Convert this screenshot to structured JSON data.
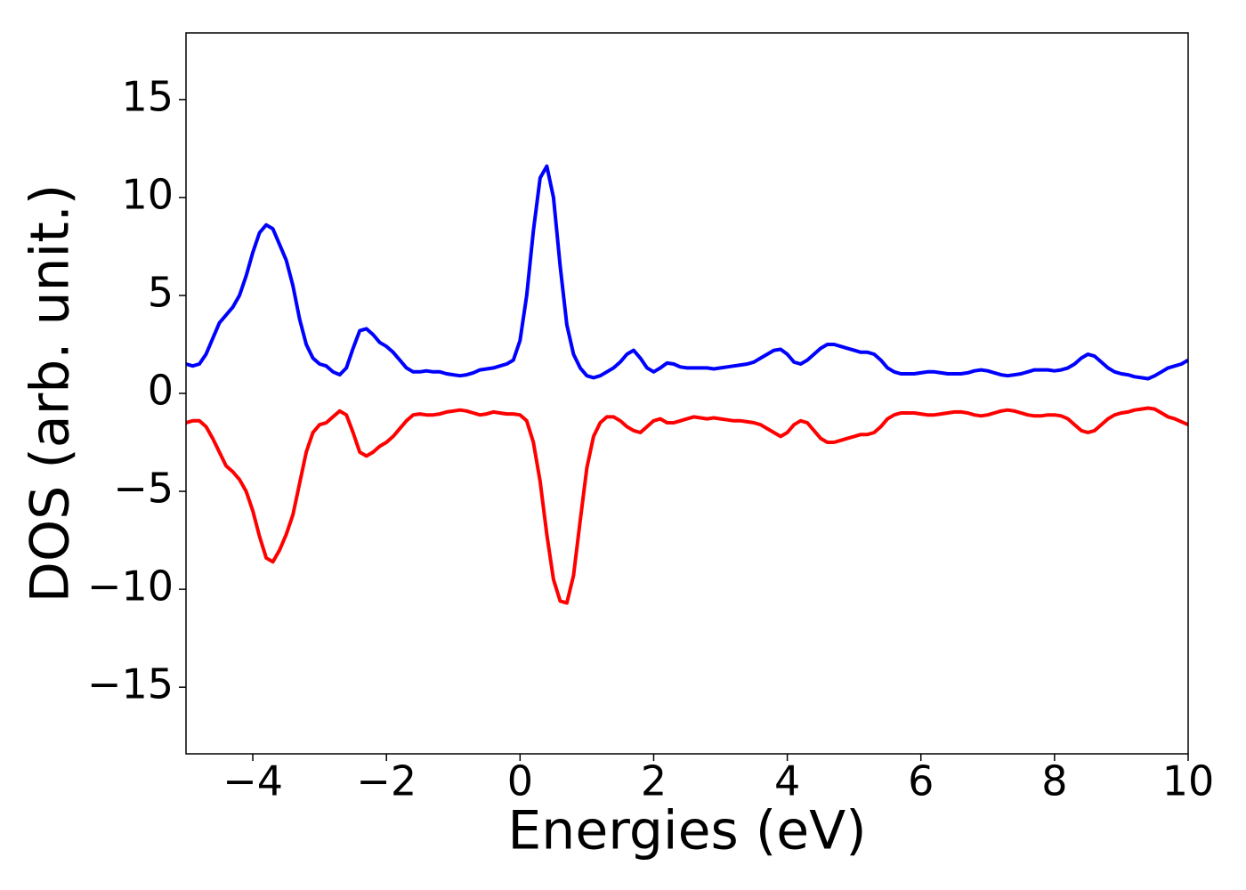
{
  "chart_data": {
    "type": "line",
    "xlabel": "Energies (eV)",
    "ylabel": "DOS (arb. unit.)",
    "x": [
      -5,
      -4.9,
      -4.8,
      -4.7,
      -4.6,
      -4.5,
      -4.4,
      -4.3,
      -4.2,
      -4.1,
      -4,
      -3.9,
      -3.8,
      -3.7,
      -3.6,
      -3.5,
      -3.4,
      -3.3,
      -3.2,
      -3.1,
      -3,
      -2.9,
      -2.8,
      -2.7,
      -2.6,
      -2.5,
      -2.4,
      -2.3,
      -2.2,
      -2.1,
      -2,
      -1.9,
      -1.8,
      -1.7,
      -1.6,
      -1.5,
      -1.4,
      -1.3,
      -1.2,
      -1.1,
      -1,
      -0.9,
      -0.8,
      -0.7,
      -0.6,
      -0.5,
      -0.4,
      -0.3,
      -0.2,
      -0.1,
      0,
      0.1,
      0.2,
      0.3,
      0.4,
      0.5,
      0.6,
      0.7,
      0.8,
      0.9,
      1,
      1.1,
      1.2,
      1.3,
      1.4,
      1.5,
      1.6,
      1.7,
      1.8,
      1.9,
      2,
      2.1,
      2.2,
      2.3,
      2.4,
      2.5,
      2.6,
      2.7,
      2.8,
      2.9,
      3,
      3.1,
      3.2,
      3.3,
      3.4,
      3.5,
      3.6,
      3.7,
      3.8,
      3.9,
      4,
      4.1,
      4.2,
      4.3,
      4.4,
      4.5,
      4.6,
      4.7,
      4.8,
      4.9,
      5,
      5.1,
      5.2,
      5.3,
      5.4,
      5.5,
      5.6,
      5.7,
      5.8,
      5.9,
      6,
      6.1,
      6.2,
      6.3,
      6.4,
      6.5,
      6.6,
      6.7,
      6.8,
      6.9,
      7,
      7.1,
      7.2,
      7.3,
      7.4,
      7.5,
      7.6,
      7.7,
      7.8,
      7.9,
      8,
      8.1,
      8.2,
      8.3,
      8.4,
      8.5,
      8.6,
      8.7,
      8.8,
      8.9,
      9,
      9.1,
      9.2,
      9.3,
      9.4,
      9.5,
      9.6,
      9.7,
      9.8,
      9.9,
      10
    ],
    "series": [
      {
        "color": "#0000ff",
        "values": [
          1.5,
          1.4,
          1.5,
          2.0,
          2.8,
          3.6,
          4.0,
          4.4,
          5.0,
          6.0,
          7.2,
          8.2,
          8.6,
          8.4,
          7.6,
          6.8,
          5.5,
          3.8,
          2.5,
          1.8,
          1.5,
          1.4,
          1.1,
          0.95,
          1.3,
          2.3,
          3.2,
          3.3,
          3.0,
          2.6,
          2.4,
          2.1,
          1.7,
          1.3,
          1.1,
          1.1,
          1.15,
          1.1,
          1.1,
          1.0,
          0.95,
          0.9,
          0.95,
          1.05,
          1.2,
          1.25,
          1.3,
          1.4,
          1.5,
          1.7,
          2.7,
          5.0,
          8.3,
          11.0,
          11.6,
          10.0,
          6.5,
          3.5,
          2.0,
          1.3,
          0.9,
          0.8,
          0.9,
          1.1,
          1.3,
          1.6,
          2.0,
          2.2,
          1.8,
          1.3,
          1.1,
          1.3,
          1.55,
          1.5,
          1.35,
          1.3,
          1.3,
          1.3,
          1.3,
          1.25,
          1.3,
          1.35,
          1.4,
          1.45,
          1.5,
          1.6,
          1.8,
          2.0,
          2.2,
          2.25,
          2.0,
          1.6,
          1.5,
          1.7,
          2.0,
          2.3,
          2.5,
          2.5,
          2.4,
          2.3,
          2.2,
          2.1,
          2.1,
          2.0,
          1.7,
          1.3,
          1.1,
          1.0,
          1.0,
          1.0,
          1.05,
          1.1,
          1.1,
          1.05,
          1.0,
          1.0,
          1.0,
          1.05,
          1.15,
          1.2,
          1.15,
          1.05,
          0.95,
          0.9,
          0.95,
          1.0,
          1.1,
          1.2,
          1.2,
          1.2,
          1.15,
          1.2,
          1.3,
          1.5,
          1.8,
          2.0,
          1.9,
          1.6,
          1.3,
          1.1,
          1.0,
          0.95,
          0.85,
          0.8,
          0.75,
          0.9,
          1.1,
          1.3,
          1.4,
          1.5,
          1.7
        ]
      },
      {
        "color": "#ff0000",
        "values": [
          -1.5,
          -1.4,
          -1.4,
          -1.7,
          -2.3,
          -3.0,
          -3.7,
          -4.0,
          -4.4,
          -5.0,
          -6.0,
          -7.3,
          -8.4,
          -8.6,
          -8.0,
          -7.2,
          -6.2,
          -4.6,
          -3.0,
          -2.0,
          -1.6,
          -1.5,
          -1.2,
          -0.9,
          -1.1,
          -2.0,
          -3.0,
          -3.2,
          -3.0,
          -2.7,
          -2.5,
          -2.2,
          -1.8,
          -1.4,
          -1.1,
          -1.05,
          -1.1,
          -1.1,
          -1.05,
          -0.95,
          -0.9,
          -0.85,
          -0.9,
          -1.0,
          -1.1,
          -1.05,
          -0.95,
          -1.0,
          -1.05,
          -1.05,
          -1.1,
          -1.4,
          -2.5,
          -4.5,
          -7.2,
          -9.5,
          -10.6,
          -10.7,
          -9.3,
          -6.5,
          -3.8,
          -2.2,
          -1.5,
          -1.2,
          -1.2,
          -1.4,
          -1.7,
          -1.9,
          -2.0,
          -1.7,
          -1.4,
          -1.3,
          -1.5,
          -1.5,
          -1.4,
          -1.3,
          -1.2,
          -1.25,
          -1.3,
          -1.25,
          -1.3,
          -1.35,
          -1.4,
          -1.4,
          -1.45,
          -1.5,
          -1.6,
          -1.8,
          -2.0,
          -2.2,
          -2.0,
          -1.6,
          -1.4,
          -1.5,
          -1.9,
          -2.3,
          -2.5,
          -2.5,
          -2.4,
          -2.3,
          -2.2,
          -2.1,
          -2.1,
          -2.0,
          -1.7,
          -1.3,
          -1.1,
          -1.0,
          -1.0,
          -1.0,
          -1.05,
          -1.1,
          -1.1,
          -1.05,
          -1.0,
          -0.95,
          -0.95,
          -1.0,
          -1.1,
          -1.15,
          -1.1,
          -1.0,
          -0.9,
          -0.85,
          -0.9,
          -1.0,
          -1.1,
          -1.15,
          -1.15,
          -1.1,
          -1.1,
          -1.15,
          -1.3,
          -1.6,
          -1.9,
          -2.0,
          -1.9,
          -1.6,
          -1.3,
          -1.1,
          -1.0,
          -0.95,
          -0.85,
          -0.8,
          -0.75,
          -0.8,
          -1.0,
          -1.2,
          -1.3,
          -1.45,
          -1.6
        ]
      }
    ],
    "xlim": [
      -5,
      10
    ],
    "xticks": [
      {
        "value": -4,
        "label": "−4"
      },
      {
        "value": -2,
        "label": "−2"
      },
      0,
      2,
      4,
      6,
      8,
      10
    ],
    "ylim": [
      -18.4,
      18.4
    ],
    "yticks": [
      {
        "value": -15,
        "label": "−15"
      },
      {
        "value": -10,
        "label": "−10"
      },
      {
        "value": -5,
        "label": "−5"
      },
      0,
      5,
      10,
      15
    ]
  }
}
